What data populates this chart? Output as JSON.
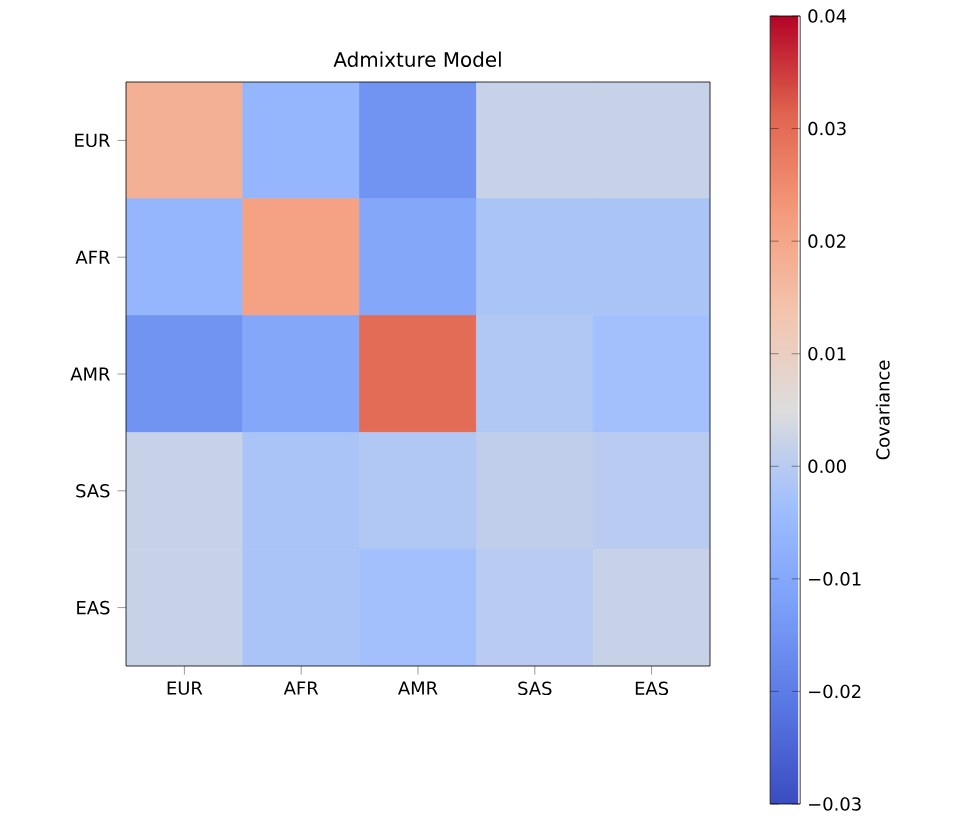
{
  "chart_data": {
    "type": "heatmap",
    "title": "Admixture Model",
    "clabel": "Covariance",
    "categories": [
      "EUR",
      "AFR",
      "AMR",
      "SAS",
      "EAS"
    ],
    "y_categories": [
      "EUR",
      "AFR",
      "AMR",
      "SAS",
      "EAS"
    ],
    "cells": [
      [
        0.018,
        -0.006,
        -0.015,
        0.002,
        0.002
      ],
      [
        -0.006,
        0.021,
        -0.01,
        -0.002,
        -0.002
      ],
      [
        -0.015,
        -0.01,
        0.03,
        -0.001,
        -0.003
      ],
      [
        0.002,
        -0.002,
        -0.001,
        0.001,
        0.0
      ],
      [
        0.002,
        -0.002,
        -0.003,
        0.0,
        0.002
      ]
    ],
    "clim": [
      -0.03,
      0.04
    ],
    "cticks": [
      {
        "value": -0.03,
        "label": "−0.03"
      },
      {
        "value": -0.02,
        "label": "−0.02"
      },
      {
        "value": -0.01,
        "label": "−0.01"
      },
      {
        "value": 0.0,
        "label": "0.00"
      },
      {
        "value": 0.01,
        "label": "0.01"
      },
      {
        "value": 0.02,
        "label": "0.02"
      },
      {
        "value": 0.03,
        "label": "0.03"
      },
      {
        "value": 0.04,
        "label": "0.04"
      }
    ]
  }
}
